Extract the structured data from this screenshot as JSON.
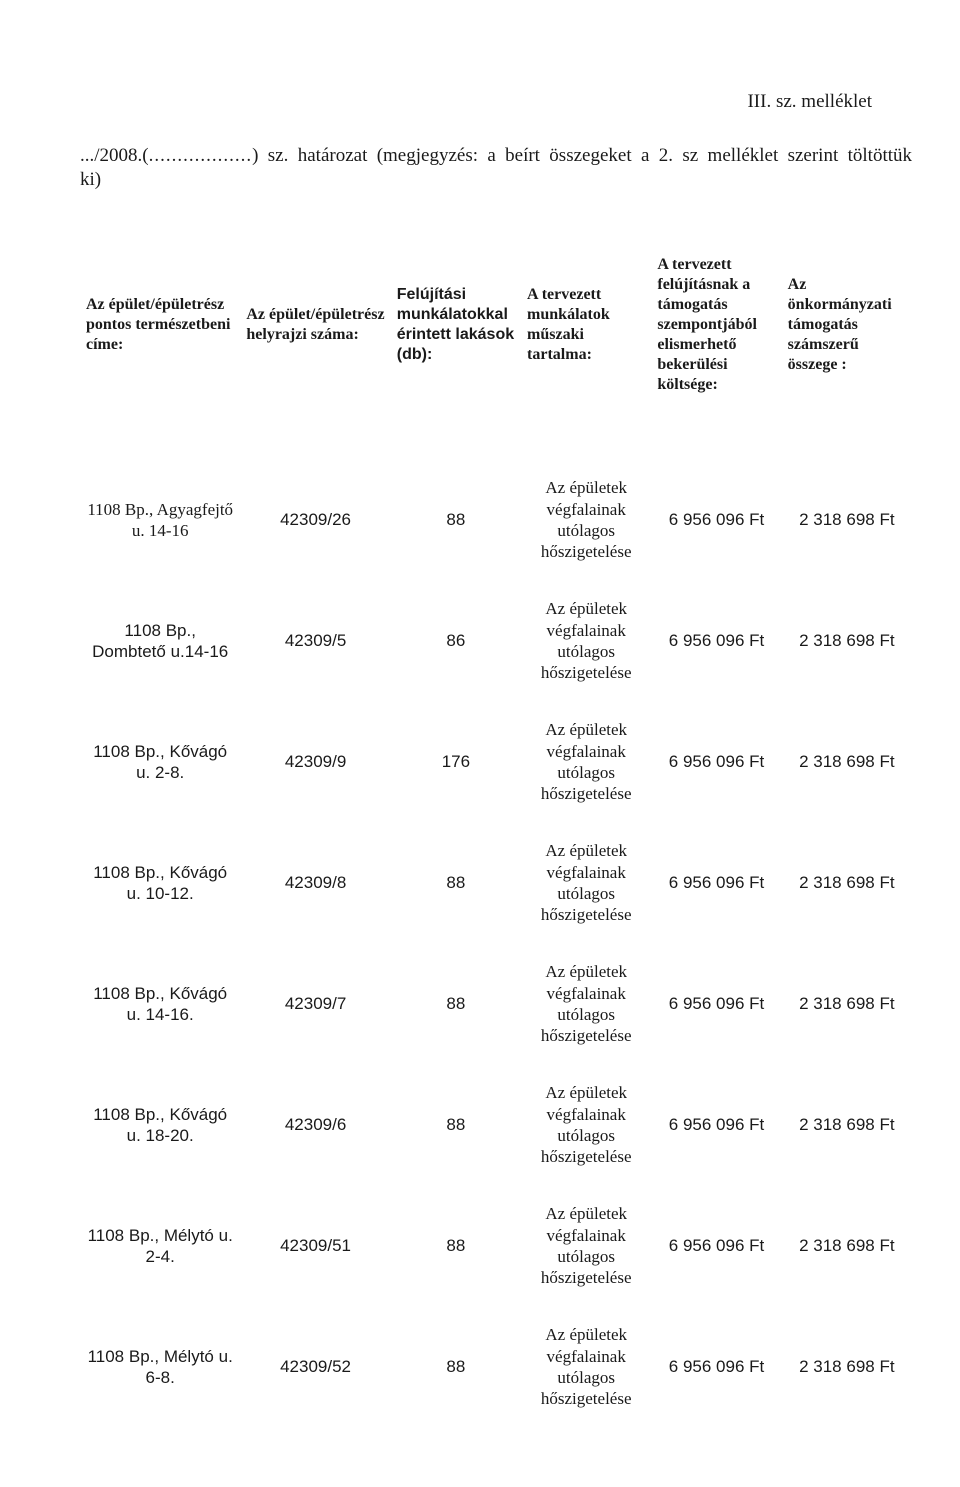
{
  "page": {
    "attachment_label": "III. sz. melléklet",
    "intro_prefix": ".../2008.(",
    "intro_dots": "..................",
    "intro_suffix": ") sz. határozat (megjegyzés: a beírt összegeket a 2. sz melléklet szerint töltöttük ki)"
  },
  "columns": {
    "col1": "Az épület/épületrész pontos természetbeni címe:",
    "col2": "Az épület/épületrész helyrajzi száma:",
    "col3": "Felújítási munkálatokkal érintett lakások (db):",
    "col4": "A tervezett munkálatok műszaki tartalma:",
    "col5": "A tervezett felújításnak a támogatás szempontjából elismerhető bekerülési költsége:",
    "col6": "Az önkormányzati támogatás számszerű összege :"
  },
  "col_style": {
    "header_font_size": 16,
    "serif_rows_font_family": "Times New Roman",
    "sans_rows_font_family": "Arial"
  },
  "rows": [
    {
      "addr_font": "serif",
      "addr": "1108 Bp., Agyagfejtő u. 14-16",
      "hrsz": "42309/26",
      "lak": "88",
      "musz": "Az épületek végfalainak utólagos hőszigetelése",
      "kolt": "6 956 096 Ft",
      "tam": "2 318 698 Ft"
    },
    {
      "addr_font": "sans",
      "addr": "1108 Bp., Dombtető u.14-16",
      "hrsz": "42309/5",
      "lak": "86",
      "musz": "Az épületek végfalainak utólagos hőszigetelése",
      "kolt": "6 956 096 Ft",
      "tam": "2 318 698 Ft"
    },
    {
      "addr_font": "sans",
      "addr": "1108 Bp., Kővágó u. 2-8.",
      "hrsz": "42309/9",
      "lak": "176",
      "musz": "Az épületek végfalainak utólagos hőszigetelése",
      "kolt": "6 956 096 Ft",
      "tam": "2 318 698 Ft"
    },
    {
      "addr_font": "sans",
      "addr": "1108 Bp., Kővágó u. 10-12.",
      "hrsz": "42309/8",
      "lak": "88",
      "musz": "Az épületek végfalainak utólagos hőszigetelése",
      "kolt": "6 956 096 Ft",
      "tam": "2 318 698 Ft"
    },
    {
      "addr_font": "sans",
      "addr": "1108 Bp., Kővágó u. 14-16.",
      "hrsz": "42309/7",
      "lak": "88",
      "musz": "Az épületek végfalainak utólagos hőszigetelése",
      "kolt": "6 956 096 Ft",
      "tam": "2 318 698 Ft"
    },
    {
      "addr_font": "sans",
      "addr": "1108 Bp., Kővágó u. 18-20.",
      "hrsz": "42309/6",
      "lak": "88",
      "musz": "Az épületek végfalainak utólagos hőszigetelése",
      "kolt": "6 956 096 Ft",
      "tam": "2 318 698 Ft"
    },
    {
      "addr_font": "sans",
      "addr": "1108 Bp., Mélytó u. 2-4.",
      "hrsz": "42309/51",
      "lak": "88",
      "musz": "Az épületek végfalainak utólagos hőszigetelése",
      "kolt": "6 956 096 Ft",
      "tam": "2 318 698 Ft"
    },
    {
      "addr_font": "sans",
      "addr": "1108 Bp., Mélytó u. 6-8.",
      "hrsz": "42309/52",
      "lak": "88",
      "musz": "Az épületek végfalainak utólagos hőszigetelése",
      "kolt": "6 956 096 Ft",
      "tam": "2 318 698 Ft"
    }
  ]
}
